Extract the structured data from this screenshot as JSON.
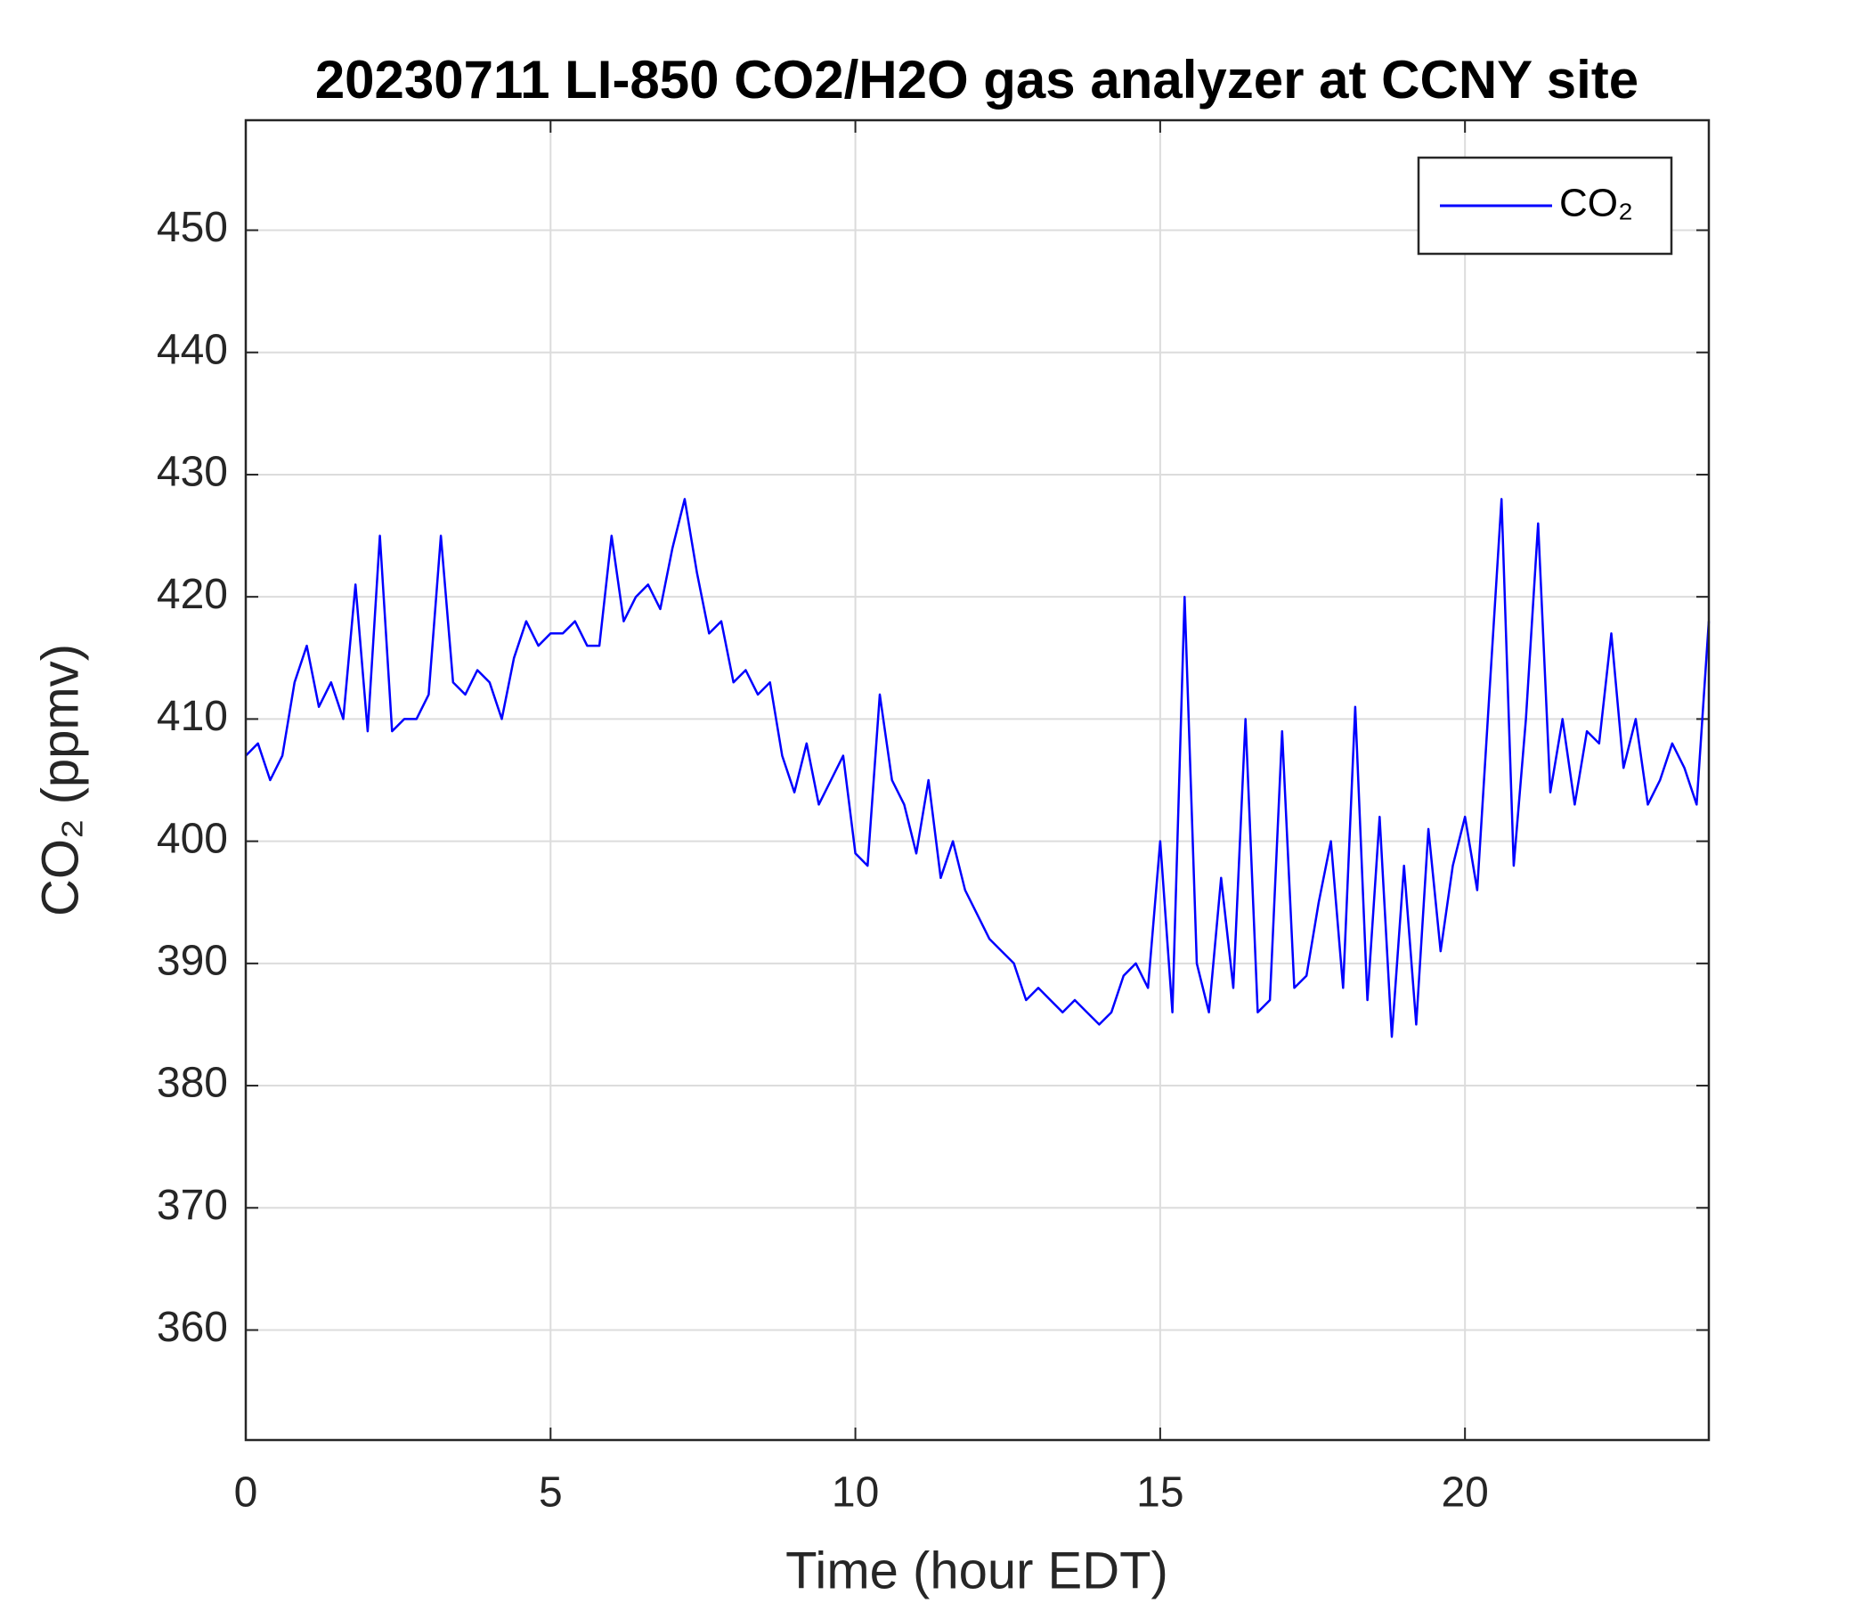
{
  "chart_data": {
    "type": "line",
    "title": "20230711 LI-850 CO2/H2O gas analyzer at CCNY site",
    "x_label": "Time (hour EDT)",
    "y_label": "CO₂ (ppmv)",
    "xlim": [
      0,
      24
    ],
    "xticks": [
      0,
      5,
      10,
      15,
      20
    ],
    "ylim": [
      351,
      459
    ],
    "yticks": [
      360,
      370,
      380,
      390,
      400,
      410,
      420,
      430,
      440,
      450
    ],
    "grid": true,
    "legend": "upper right",
    "x": [
      0.0,
      0.2,
      0.4,
      0.6,
      0.8,
      1.0,
      1.2,
      1.4,
      1.6,
      1.8,
      2.0,
      2.2,
      2.4,
      2.6,
      2.8,
      3.0,
      3.2,
      3.4,
      3.6,
      3.8,
      4.0,
      4.2,
      4.4,
      4.6,
      4.8,
      5.0,
      5.2,
      5.4,
      5.6,
      5.8,
      6.0,
      6.2,
      6.4,
      6.6,
      6.8,
      7.0,
      7.2,
      7.4,
      7.6,
      7.8,
      8.0,
      8.2,
      8.4,
      8.6,
      8.8,
      9.0,
      9.2,
      9.4,
      9.6,
      9.8,
      10.0,
      10.2,
      10.4,
      10.6,
      10.8,
      11.0,
      11.2,
      11.4,
      11.6,
      11.8,
      12.0,
      12.2,
      12.4,
      12.6,
      12.8,
      13.0,
      13.2,
      13.4,
      13.6,
      13.8,
      14.0,
      14.2,
      14.4,
      14.6,
      14.8,
      15.0,
      15.2,
      15.4,
      15.6,
      15.8,
      16.0,
      16.2,
      16.4,
      16.6,
      16.8,
      17.0,
      17.2,
      17.4,
      17.6,
      17.8,
      18.0,
      18.2,
      18.4,
      18.6,
      18.8,
      19.0,
      19.2,
      19.4,
      19.6,
      19.8,
      20.0,
      20.2,
      20.4,
      20.6,
      20.8,
      21.0,
      21.2,
      21.4,
      21.6,
      21.8,
      22.0,
      22.2,
      22.4,
      22.6,
      22.8,
      23.0,
      23.2,
      23.4,
      23.6,
      23.8,
      24.0
    ],
    "series": [
      {
        "name": "CO₂",
        "color": "#0000ff",
        "values": [
          407,
          408,
          405,
          407,
          413,
          416,
          411,
          413,
          410,
          421,
          409,
          425,
          409,
          410,
          410,
          412,
          425,
          413,
          412,
          414,
          413,
          410,
          415,
          418,
          416,
          417,
          417,
          418,
          416,
          416,
          425,
          418,
          420,
          421,
          419,
          424,
          428,
          422,
          417,
          418,
          413,
          414,
          412,
          413,
          407,
          404,
          408,
          403,
          405,
          407,
          399,
          398,
          412,
          405,
          403,
          399,
          405,
          397,
          400,
          396,
          394,
          392,
          391,
          390,
          387,
          388,
          387,
          386,
          387,
          386,
          385,
          386,
          389,
          390,
          388,
          400,
          386,
          420,
          390,
          386,
          397,
          388,
          410,
          386,
          387,
          409,
          388,
          389,
          395,
          400,
          388,
          411,
          387,
          402,
          384,
          398,
          385,
          401,
          391,
          398,
          402,
          396,
          412,
          428,
          398,
          410,
          426,
          404,
          410,
          403,
          409,
          408,
          417,
          406,
          410,
          403,
          405,
          408,
          406,
          403,
          418
        ]
      }
    ]
  }
}
